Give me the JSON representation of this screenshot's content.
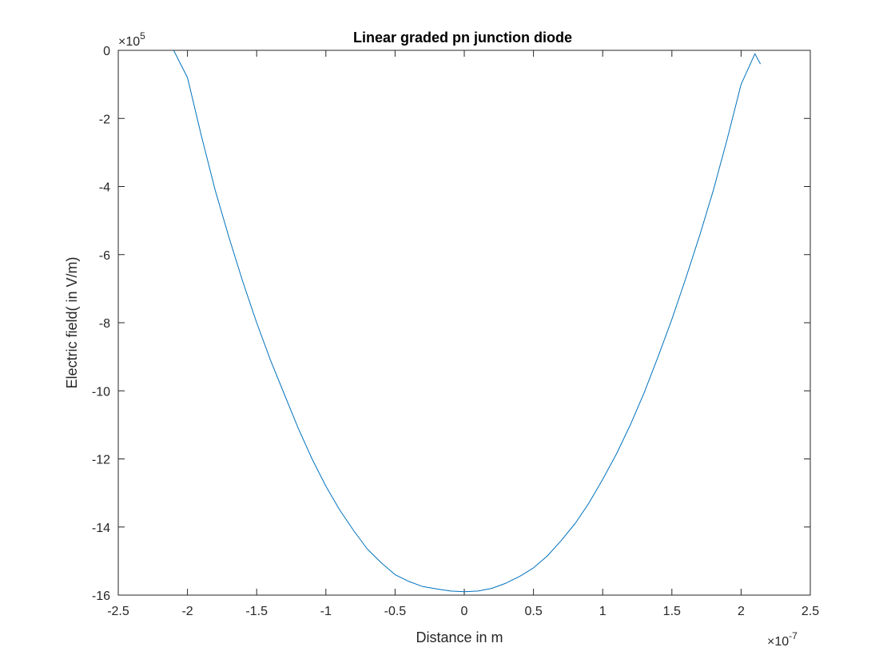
{
  "chart_data": {
    "type": "line",
    "title": "Linear graded pn junction diode",
    "xlabel": "Distance in m",
    "ylabel": "Electric field( in V/m)",
    "x_multiplier": {
      "base": "×10",
      "exponent": "-7"
    },
    "y_multiplier": {
      "base": "×10",
      "exponent": "5"
    },
    "xlim": [
      -2.5,
      2.5
    ],
    "ylim": [
      -16,
      0
    ],
    "x_ticks": [
      "-2.5",
      "-2",
      "-1.5",
      "-1",
      "-0.5",
      "0",
      "0.5",
      "1",
      "1.5",
      "2",
      "2.5"
    ],
    "y_ticks": [
      "0",
      "-2",
      "-4",
      "-6",
      "-8",
      "-10",
      "-12",
      "-14",
      "-16"
    ],
    "grid": false,
    "box": true,
    "series": [
      {
        "color": "#0072BD",
        "x": [
          -2.1,
          -2.0,
          -1.9,
          -1.8,
          -1.7,
          -1.6,
          -1.5,
          -1.4,
          -1.3,
          -1.2,
          -1.1,
          -1.0,
          -0.9,
          -0.8,
          -0.7,
          -0.6,
          -0.5,
          -0.4,
          -0.3,
          -0.2,
          -0.1,
          0.0,
          0.1,
          0.2,
          0.3,
          0.4,
          0.5,
          0.6,
          0.7,
          0.8,
          0.9,
          1.0,
          1.1,
          1.2,
          1.3,
          1.4,
          1.5,
          1.6,
          1.7,
          1.8,
          1.9,
          2.0,
          2.05,
          2.1,
          2.14
        ],
        "y": [
          0.0,
          -0.8,
          -2.5,
          -4.1,
          -5.5,
          -6.8,
          -8.0,
          -9.1,
          -10.1,
          -11.1,
          -12.0,
          -12.8,
          -13.5,
          -14.1,
          -14.65,
          -15.05,
          -15.4,
          -15.6,
          -15.75,
          -15.82,
          -15.88,
          -15.9,
          -15.88,
          -15.8,
          -15.65,
          -15.45,
          -15.2,
          -14.85,
          -14.4,
          -13.9,
          -13.3,
          -12.6,
          -11.85,
          -11.0,
          -10.05,
          -9.0,
          -7.9,
          -6.7,
          -5.45,
          -4.1,
          -2.6,
          -1.0,
          -0.55,
          -0.1,
          -0.4
        ]
      }
    ]
  }
}
